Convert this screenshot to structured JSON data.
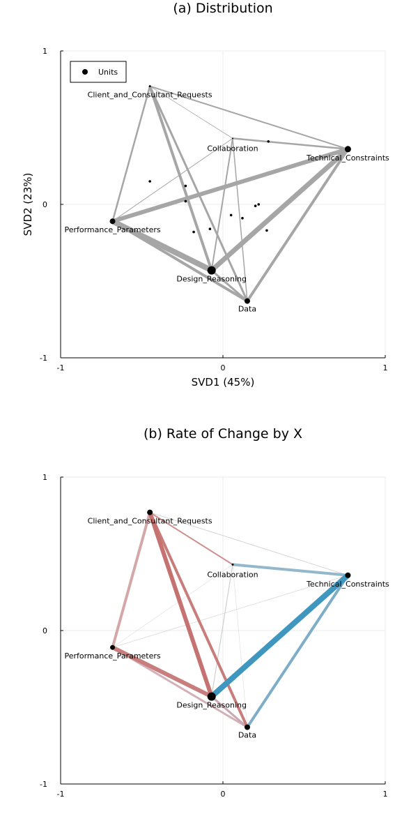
{
  "chart_data": [
    {
      "type": "scatter",
      "subtype": "network-biplot",
      "title": "(a) Distribution",
      "xlabel": "SVD1 (45%)",
      "ylabel": "SVD2 (23%)",
      "xlim": [
        -1,
        1
      ],
      "ylim": [
        -1,
        1
      ],
      "xticks": [
        "-1",
        "0",
        "1"
      ],
      "yticks": [
        "-1",
        "0",
        "1"
      ],
      "grid": true,
      "legend": {
        "position": "top-left",
        "entries": [
          "Units"
        ]
      },
      "edge_color": "#a6a6a6",
      "nodes": [
        {
          "name": "Client_and_Consultant_Requests",
          "x": -0.45,
          "y": 0.77,
          "size": 3
        },
        {
          "name": "Collaboration",
          "x": 0.06,
          "y": 0.43,
          "size": 2
        },
        {
          "name": "Technical_Constraints",
          "x": 0.77,
          "y": 0.36,
          "size": 9
        },
        {
          "name": "Performance_Parameters",
          "x": -0.68,
          "y": -0.11,
          "size": 8
        },
        {
          "name": "Design_Reasoning",
          "x": -0.07,
          "y": -0.43,
          "size": 12
        },
        {
          "name": "Data",
          "x": 0.15,
          "y": -0.63,
          "size": 8
        }
      ],
      "units": [
        {
          "x": 0.28,
          "y": 0.41
        },
        {
          "x": -0.45,
          "y": 0.15
        },
        {
          "x": -0.23,
          "y": 0.12
        },
        {
          "x": -0.23,
          "y": 0.02
        },
        {
          "x": 0.22,
          "y": 0.0
        },
        {
          "x": 0.2,
          "y": -0.01
        },
        {
          "x": 0.05,
          "y": -0.07
        },
        {
          "x": 0.12,
          "y": -0.09
        },
        {
          "x": -0.08,
          "y": -0.16
        },
        {
          "x": 0.27,
          "y": -0.17
        },
        {
          "x": -0.18,
          "y": -0.18
        }
      ],
      "edges": [
        {
          "from": "Client_and_Consultant_Requests",
          "to": "Technical_Constraints",
          "weight": 2
        },
        {
          "from": "Client_and_Consultant_Requests",
          "to": "Collaboration",
          "weight": 0.8
        },
        {
          "from": "Client_and_Consultant_Requests",
          "to": "Performance_Parameters",
          "weight": 2.5
        },
        {
          "from": "Client_and_Consultant_Requests",
          "to": "Design_Reasoning",
          "weight": 4
        },
        {
          "from": "Client_and_Consultant_Requests",
          "to": "Data",
          "weight": 3
        },
        {
          "from": "Collaboration",
          "to": "Technical_Constraints",
          "weight": 2.5
        },
        {
          "from": "Collaboration",
          "to": "Performance_Parameters",
          "weight": 1
        },
        {
          "from": "Collaboration",
          "to": "Design_Reasoning",
          "weight": 2
        },
        {
          "from": "Collaboration",
          "to": "Data",
          "weight": 1.5
        },
        {
          "from": "Technical_Constraints",
          "to": "Performance_Parameters",
          "weight": 6
        },
        {
          "from": "Technical_Constraints",
          "to": "Design_Reasoning",
          "weight": 7
        },
        {
          "from": "Technical_Constraints",
          "to": "Data",
          "weight": 4
        },
        {
          "from": "Performance_Parameters",
          "to": "Design_Reasoning",
          "weight": 8
        },
        {
          "from": "Performance_Parameters",
          "to": "Data",
          "weight": 4
        },
        {
          "from": "Design_Reasoning",
          "to": "Data",
          "weight": 3
        }
      ]
    },
    {
      "type": "scatter",
      "subtype": "network-biplot",
      "title": "(b) Rate of Change by X",
      "xlabel": "",
      "ylabel": "",
      "xlim": [
        -1,
        1
      ],
      "ylim": [
        -1,
        1
      ],
      "xticks": [
        "-1",
        "0",
        "1"
      ],
      "yticks": [
        "-1",
        "0",
        "1"
      ],
      "grid": true,
      "nodes": [
        {
          "name": "Client_and_Consultant_Requests",
          "x": -0.45,
          "y": 0.77,
          "size": 8
        },
        {
          "name": "Collaboration",
          "x": 0.06,
          "y": 0.43,
          "size": 3
        },
        {
          "name": "Technical_Constraints",
          "x": 0.77,
          "y": 0.36,
          "size": 8
        },
        {
          "name": "Performance_Parameters",
          "x": -0.68,
          "y": -0.11,
          "size": 7
        },
        {
          "name": "Design_Reasoning",
          "x": -0.07,
          "y": -0.43,
          "size": 12
        },
        {
          "name": "Data",
          "x": 0.15,
          "y": -0.63,
          "size": 8
        }
      ],
      "edges": [
        {
          "from": "Client_and_Consultant_Requests",
          "to": "Technical_Constraints",
          "weight": 1,
          "color": "#d4d4d4"
        },
        {
          "from": "Client_and_Consultant_Requests",
          "to": "Collaboration",
          "weight": 2,
          "color": "#d09090"
        },
        {
          "from": "Client_and_Consultant_Requests",
          "to": "Performance_Parameters",
          "weight": 4,
          "color": "#d4a8a8"
        },
        {
          "from": "Client_and_Consultant_Requests",
          "to": "Design_Reasoning",
          "weight": 6,
          "color": "#c57370"
        },
        {
          "from": "Client_and_Consultant_Requests",
          "to": "Data",
          "weight": 4,
          "color": "#c97d7a"
        },
        {
          "from": "Collaboration",
          "to": "Technical_Constraints",
          "weight": 4,
          "color": "#93b8cc"
        },
        {
          "from": "Collaboration",
          "to": "Performance_Parameters",
          "weight": 0.6,
          "color": "#dcdcdc"
        },
        {
          "from": "Collaboration",
          "to": "Design_Reasoning",
          "weight": 1.2,
          "color": "#cfcfcf"
        },
        {
          "from": "Collaboration",
          "to": "Data",
          "weight": 0.6,
          "color": "#dddddd"
        },
        {
          "from": "Technical_Constraints",
          "to": "Performance_Parameters",
          "weight": 0.8,
          "color": "#d9d9d9"
        },
        {
          "from": "Technical_Constraints",
          "to": "Design_Reasoning",
          "weight": 8,
          "color": "#3f97c0"
        },
        {
          "from": "Technical_Constraints",
          "to": "Data",
          "weight": 4,
          "color": "#7eadc8"
        },
        {
          "from": "Performance_Parameters",
          "to": "Design_Reasoning",
          "weight": 6,
          "color": "#c77e7c"
        },
        {
          "from": "Performance_Parameters",
          "to": "Data",
          "weight": 3,
          "color": "#d4b0b8"
        },
        {
          "from": "Design_Reasoning",
          "to": "Data",
          "weight": 3,
          "color": "#c9a8b4"
        }
      ]
    }
  ]
}
